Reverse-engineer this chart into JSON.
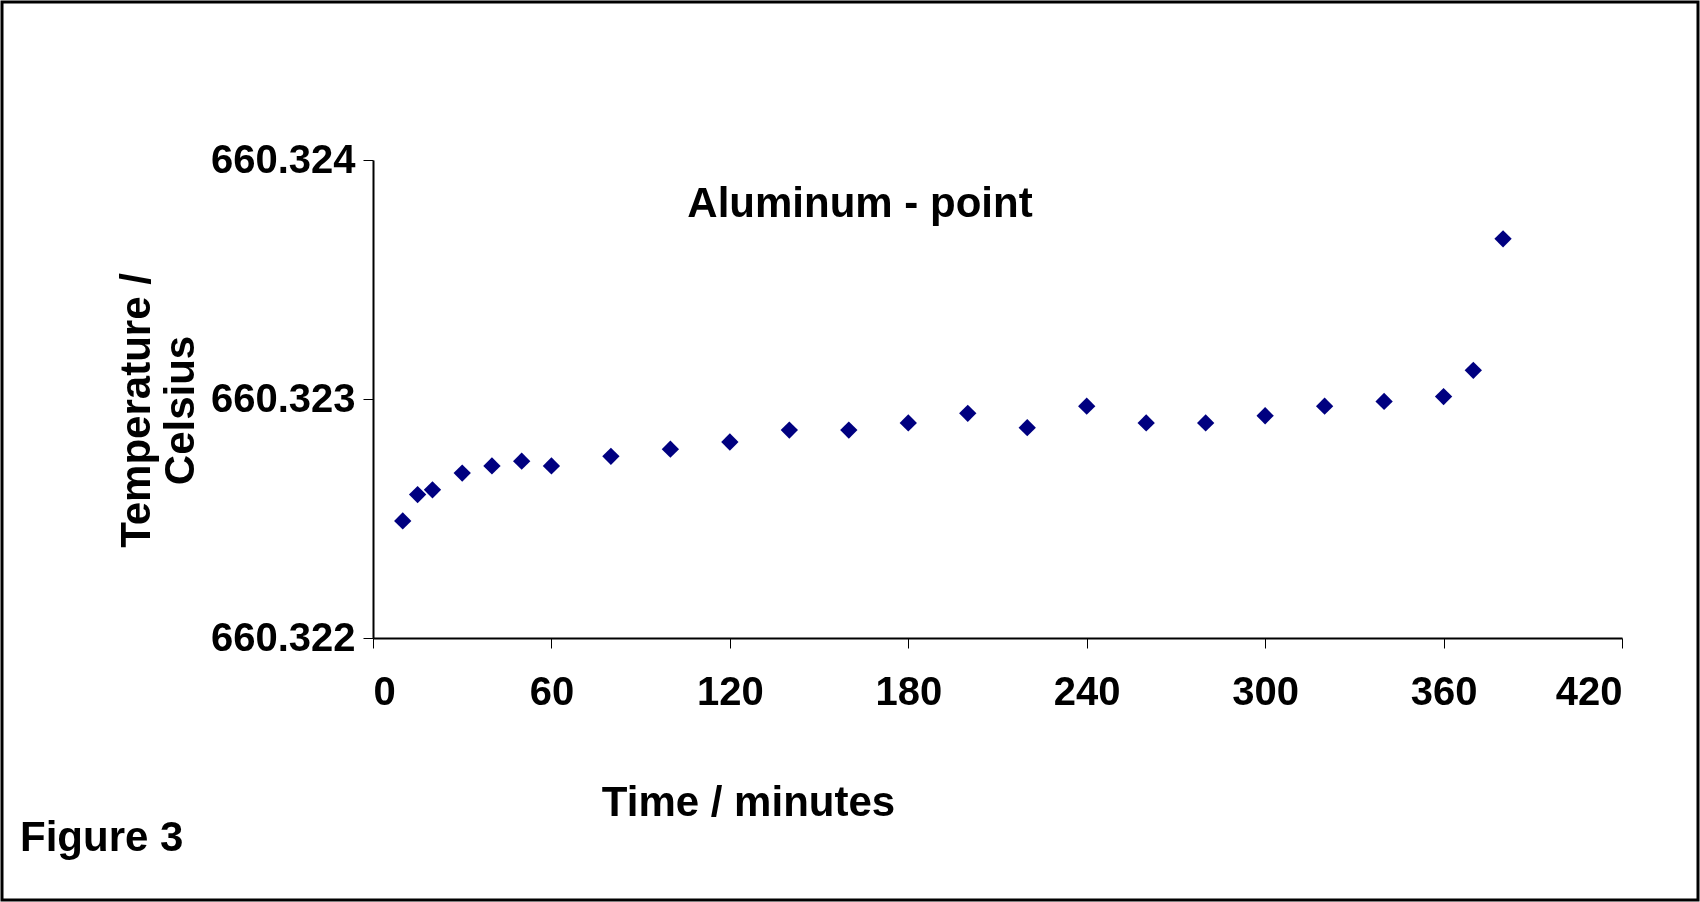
{
  "chart_data": {
    "type": "scatter",
    "title": "Aluminum - point",
    "xlabel": "Time / minutes",
    "ylabel": "Temperature / Celsius",
    "annotations": [
      "Figure 3"
    ],
    "x": [
      10,
      15,
      20,
      30,
      40,
      50,
      60,
      80,
      100,
      120,
      140,
      160,
      180,
      200,
      220,
      240,
      260,
      280,
      300,
      320,
      340,
      360,
      370,
      380
    ],
    "series": [
      {
        "color": "#000080",
        "values": [
          660.32249,
          660.3226,
          660.32262,
          660.32269,
          660.32272,
          660.32274,
          660.32272,
          660.32276,
          660.32279,
          660.32282,
          660.32287,
          660.32287,
          660.3229,
          660.32294,
          660.32288,
          660.32297,
          660.3229,
          660.3229,
          660.32293,
          660.32297,
          660.32299,
          660.32301,
          660.32312,
          660.32367
        ]
      }
    ],
    "xlim": [
      0,
      420
    ],
    "xticks": [
      0,
      60,
      120,
      180,
      240,
      300,
      360,
      420
    ],
    "ylim": [
      660.322,
      660.324
    ],
    "yticks": [
      660.322,
      660.323,
      660.324
    ],
    "marker": "diamond",
    "grid": false
  }
}
